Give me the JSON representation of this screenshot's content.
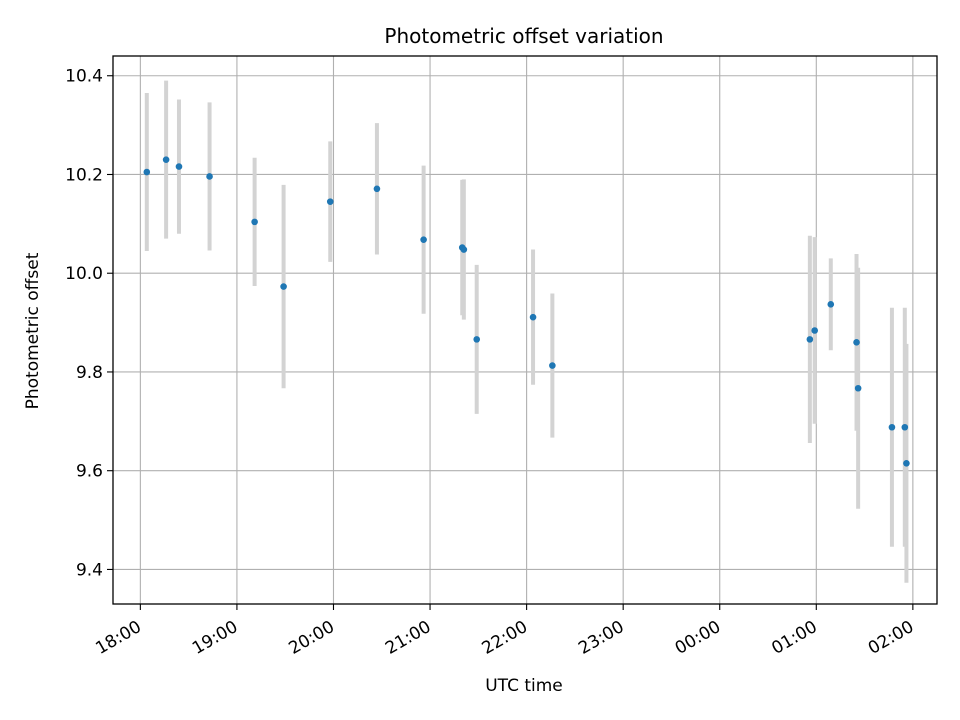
{
  "chart_data": {
    "type": "scatter",
    "title": "Photometric offset variation",
    "xlabel": "UTC time",
    "ylabel": "Photometric offset",
    "x_ticks": [
      "18:00",
      "19:00",
      "20:00",
      "21:00",
      "22:00",
      "23:00",
      "00:00",
      "01:00",
      "02:00"
    ],
    "y_ticks": [
      "9.4",
      "9.6",
      "9.8",
      "10.0",
      "10.2",
      "10.4"
    ],
    "xlim": [
      "17:43",
      "02:15"
    ],
    "ylim": [
      9.33,
      10.44
    ],
    "grid": true,
    "colors": {
      "points": "#1f77b4",
      "errorbars": "#d3d3d3",
      "grid": "#b0b0b0"
    },
    "points": [
      {
        "time": "18:04",
        "y": 10.205,
        "err": 0.16
      },
      {
        "time": "18:16",
        "y": 10.23,
        "err": 0.16
      },
      {
        "time": "18:24",
        "y": 10.216,
        "err": 0.136
      },
      {
        "time": "18:43",
        "y": 10.196,
        "err": 0.15
      },
      {
        "time": "19:11",
        "y": 10.104,
        "err": 0.13
      },
      {
        "time": "19:29",
        "y": 9.973,
        "err": 0.206
      },
      {
        "time": "19:58",
        "y": 10.145,
        "err": 0.122
      },
      {
        "time": "20:27",
        "y": 10.171,
        "err": 0.133
      },
      {
        "time": "20:56",
        "y": 10.068,
        "err": 0.15
      },
      {
        "time": "21:20",
        "y": 10.052,
        "err": 0.137
      },
      {
        "time": "21:21",
        "y": 10.048,
        "err": 0.142
      },
      {
        "time": "21:29",
        "y": 9.866,
        "err": 0.151
      },
      {
        "time": "22:04",
        "y": 9.911,
        "err": 0.137
      },
      {
        "time": "22:16",
        "y": 9.813,
        "err": 0.146
      },
      {
        "time": "00:56",
        "y": 9.866,
        "err": 0.21
      },
      {
        "time": "00:59",
        "y": 9.884,
        "err": 0.189
      },
      {
        "time": "01:09",
        "y": 9.937,
        "err": 0.093
      },
      {
        "time": "01:25",
        "y": 9.86,
        "err": 0.179
      },
      {
        "time": "01:26",
        "y": 9.767,
        "err": 0.244
      },
      {
        "time": "01:47",
        "y": 9.688,
        "err": 0.242
      },
      {
        "time": "01:55",
        "y": 9.688,
        "err": 0.242
      },
      {
        "time": "01:56",
        "y": 9.615,
        "err": 0.242
      }
    ]
  }
}
